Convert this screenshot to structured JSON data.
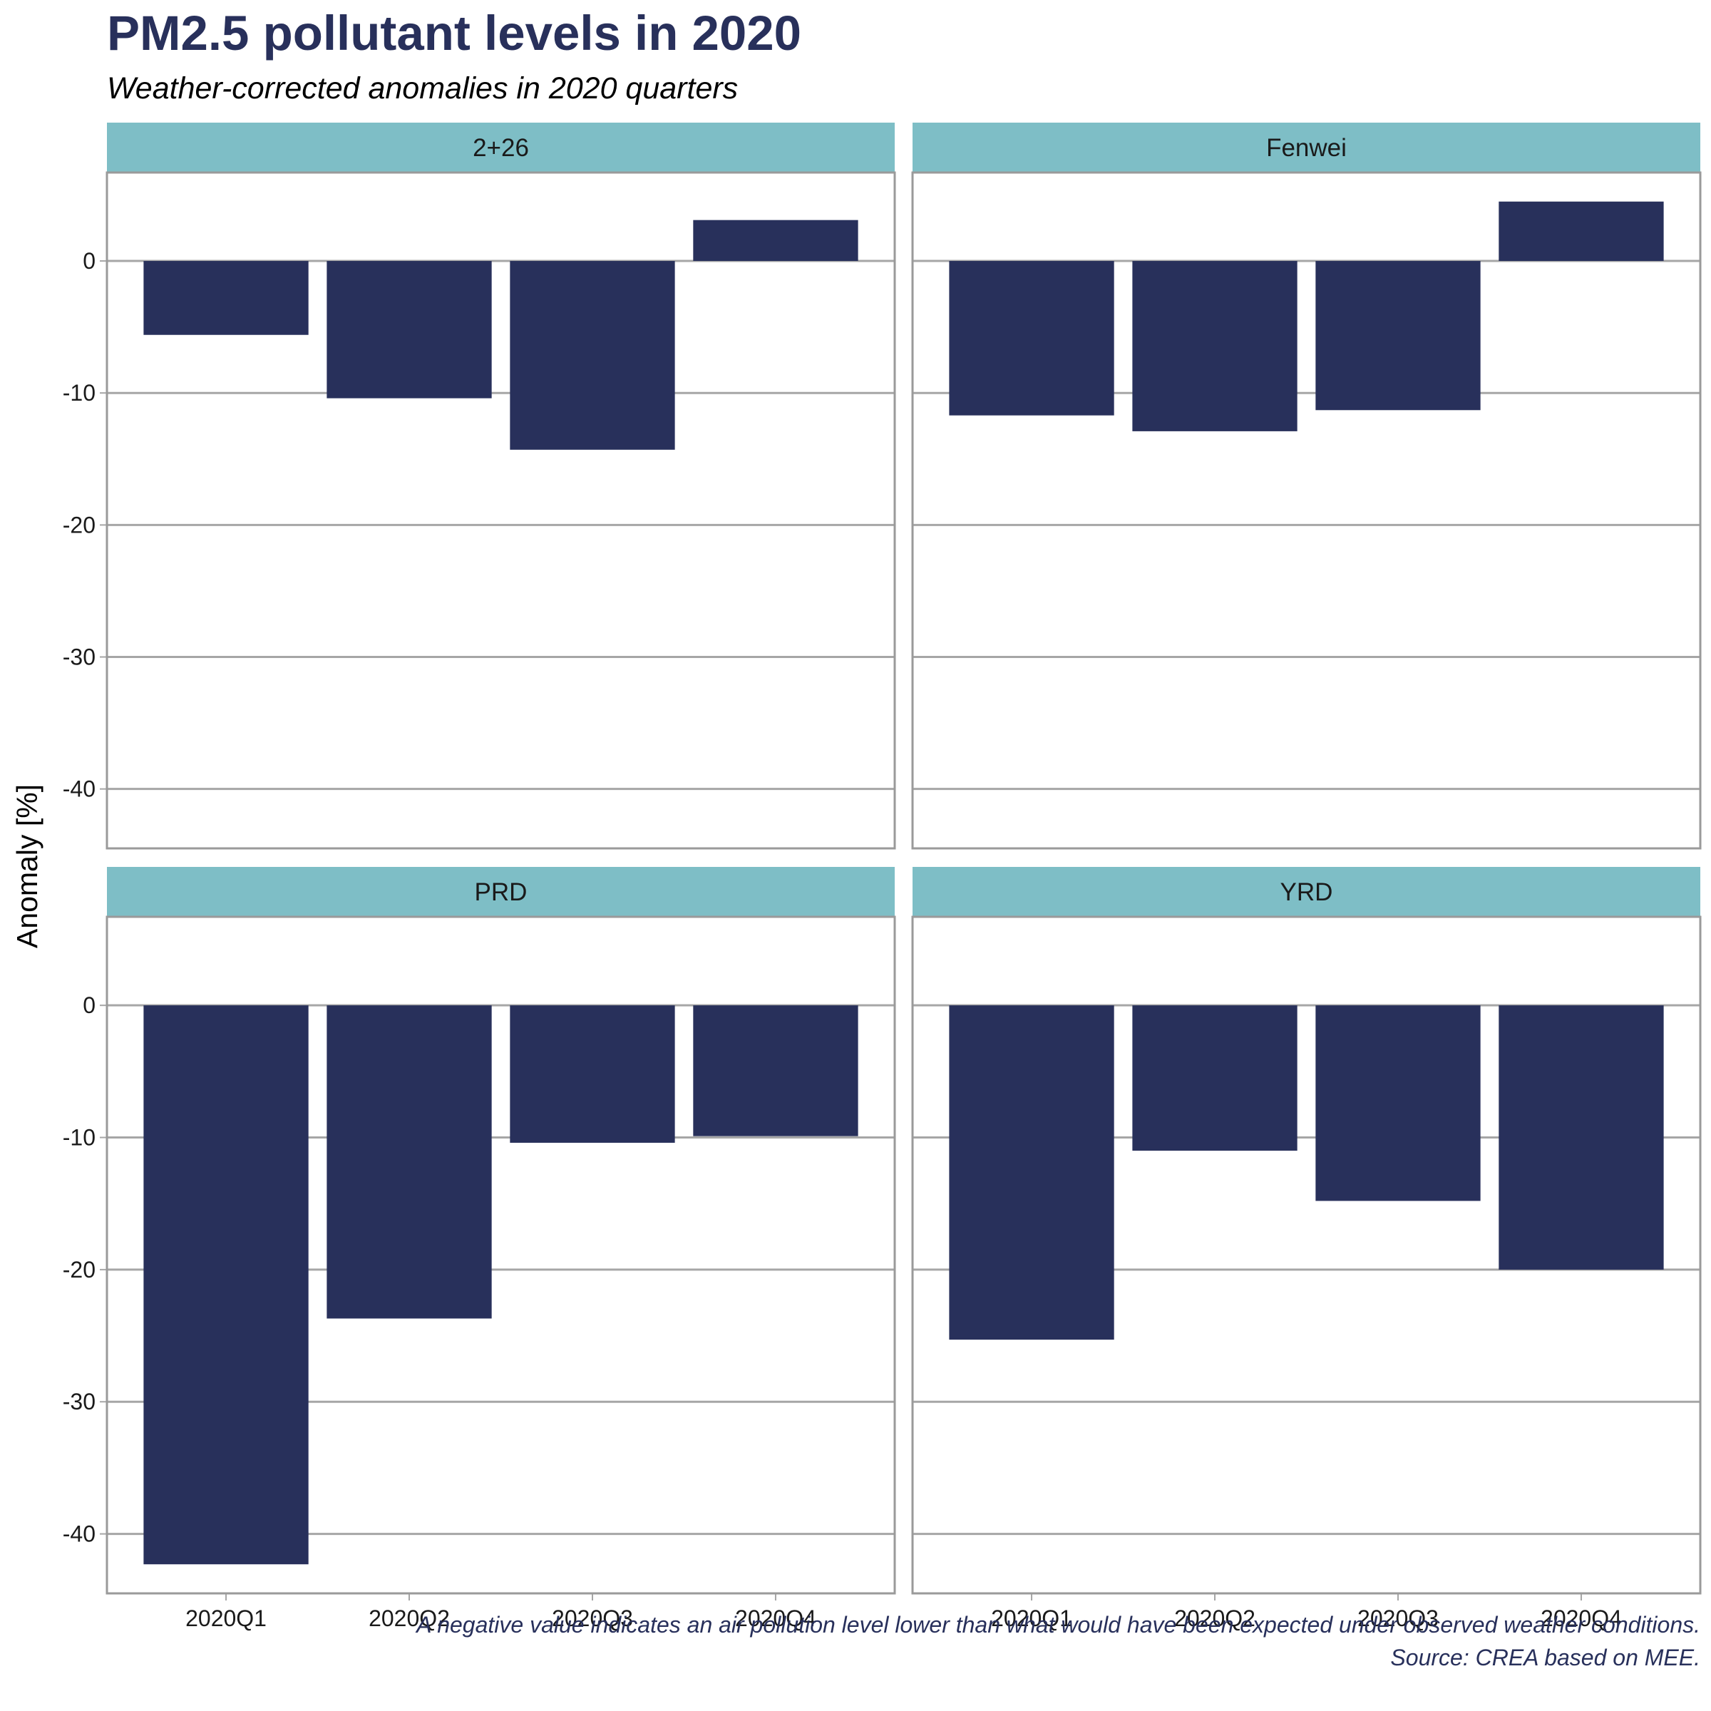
{
  "title": "PM2.5 pollutant levels in 2020",
  "subtitle": "Weather-corrected anomalies in 2020 quarters",
  "caption": {
    "line1": "A negative value indicates an air pollution level lower than what would have been expected under observed weather conditions.",
    "line2": "Source: CREA based on MEE."
  },
  "colors": {
    "bar": "#28305b",
    "strip": "#7ebec6",
    "grid": "#a6a6a6",
    "panel_border": "#9a9a9a"
  },
  "chart_data": {
    "type": "bar",
    "facet": "wrap",
    "categories": [
      "2020Q1",
      "2020Q2",
      "2020Q3",
      "2020Q4"
    ],
    "ylabel": "Anomaly [%]",
    "xlabel": "",
    "ylim": [
      -44.5,
      6.7
    ],
    "yticks": [
      0,
      -10,
      -20,
      -30,
      -40
    ],
    "grid": true,
    "panels": [
      {
        "name": "2+26",
        "values": [
          -5.6,
          -10.4,
          -14.3,
          3.1
        ]
      },
      {
        "name": "Fenwei",
        "values": [
          -11.7,
          -12.9,
          -11.3,
          4.5
        ]
      },
      {
        "name": "PRD",
        "values": [
          -42.3,
          -23.7,
          -10.4,
          -9.9
        ]
      },
      {
        "name": "YRD",
        "values": [
          -25.3,
          -11.0,
          -14.8,
          -20.0
        ]
      }
    ]
  }
}
